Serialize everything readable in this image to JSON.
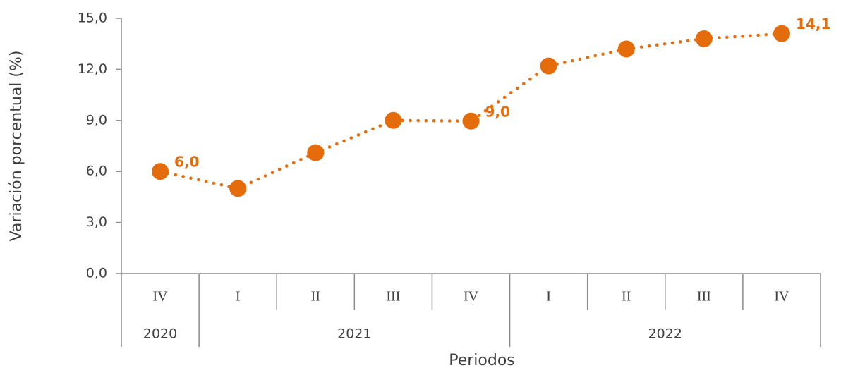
{
  "chart_data": {
    "type": "line",
    "y_label": "Variación porcentual (%)",
    "x_label": "Periodos",
    "categories": [
      "IV",
      "I",
      "II",
      "III",
      "IV",
      "I",
      "II",
      "III",
      "IV"
    ],
    "groups": [
      {
        "label": "2020",
        "count": 1
      },
      {
        "label": "2021",
        "count": 4
      },
      {
        "label": "2022",
        "count": 4
      }
    ],
    "series": [
      {
        "name": "Variación",
        "color": "#e46c0a",
        "values": [
          6.0,
          5.0,
          7.1,
          9.0,
          8.96,
          12.2,
          13.2,
          13.8,
          14.1
        ],
        "value_labels": [
          "6,0",
          null,
          null,
          null,
          "9,0",
          null,
          null,
          null,
          "14,1"
        ]
      }
    ],
    "ylim": [
      0,
      15
    ],
    "yticks": [
      {
        "value": 0,
        "label": "0,0"
      },
      {
        "value": 3,
        "label": "3,0"
      },
      {
        "value": 6,
        "label": "6,0"
      },
      {
        "value": 9,
        "label": "9,0"
      },
      {
        "value": 12,
        "label": "12,0"
      },
      {
        "value": 15,
        "label": "15,0"
      }
    ]
  }
}
